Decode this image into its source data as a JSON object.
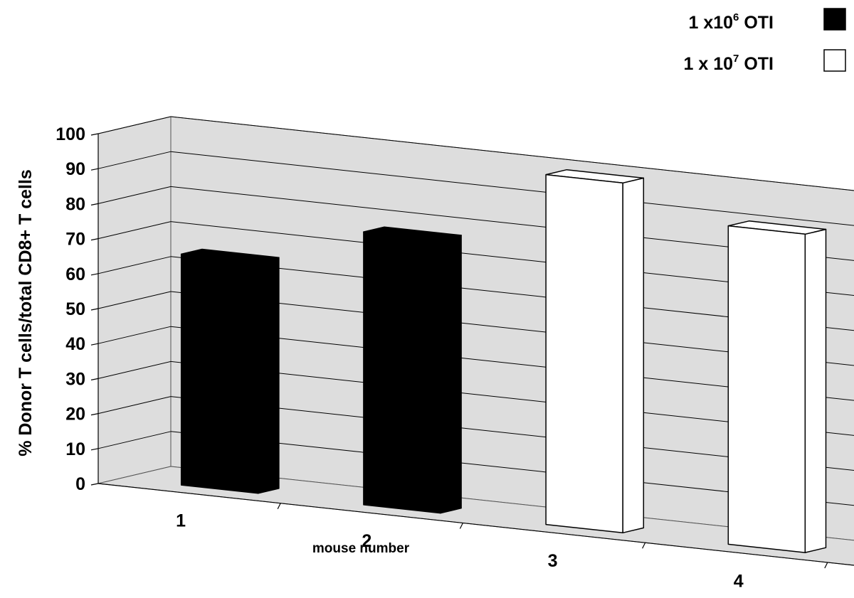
{
  "chart_data": {
    "type": "bar",
    "projection": "3d",
    "title": "",
    "xlabel": "mouse number",
    "ylabel": "% Donor T cells/total CD8+ T cells",
    "ylim": [
      0,
      100
    ],
    "yticks": [
      0,
      10,
      20,
      30,
      40,
      50,
      60,
      70,
      80,
      90,
      100
    ],
    "grid": true,
    "legend_position": "top-right",
    "categories": [
      "1",
      "2",
      "3",
      "4"
    ],
    "series": [
      {
        "name_parts": [
          "1 x10",
          "6",
          " OTI"
        ],
        "name": "1 x10^6 OTI",
        "color": "#000000",
        "values": [
          66,
          78,
          null,
          null
        ]
      },
      {
        "name_parts": [
          "1 x 10",
          "7",
          " OTI"
        ],
        "name": "1 x 10^7 OTI",
        "color": "#ffffff",
        "values": [
          null,
          null,
          100,
          91
        ]
      }
    ],
    "wall_color": "#dddddd"
  }
}
